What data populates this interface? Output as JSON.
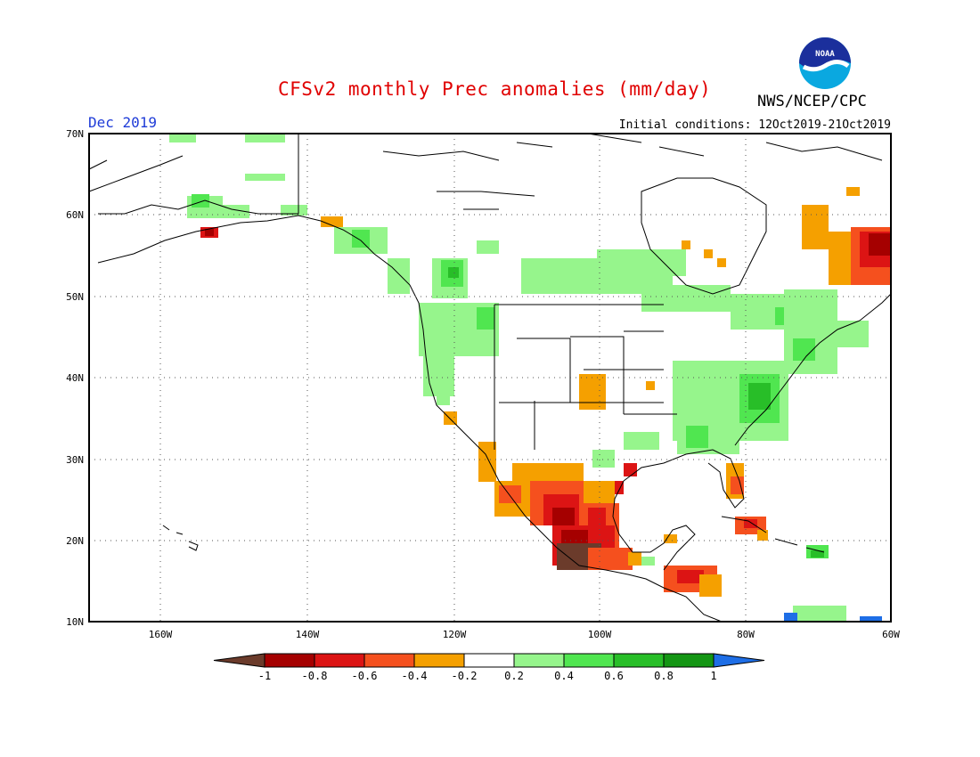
{
  "header": {
    "title": "CFSv2 monthly Prec anomalies (mm/day)",
    "agency": "NWS/NCEP/CPC",
    "month": "Dec 2019",
    "initial_conditions": "Initial conditions: 12Oct2019-21Oct2019",
    "logo_text": "NOAA"
  },
  "map": {
    "lat_labels": [
      "70N",
      "60N",
      "50N",
      "40N",
      "30N",
      "20N",
      "10N"
    ],
    "lon_labels": [
      "160W",
      "140W",
      "120W",
      "100W",
      "80W",
      "60W"
    ]
  },
  "colorbar": {
    "labels": [
      "-1",
      "-0.8",
      "-0.6",
      "-0.4",
      "-0.2",
      "0.2",
      "0.4",
      "0.6",
      "0.8",
      "1"
    ],
    "colors": [
      "#6b3b2b",
      "#a50000",
      "#dc1414",
      "#f5501e",
      "#f5a000",
      "#ffffff",
      "#96f58c",
      "#50e650",
      "#28be28",
      "#149614",
      "#1e6ee6"
    ]
  }
}
